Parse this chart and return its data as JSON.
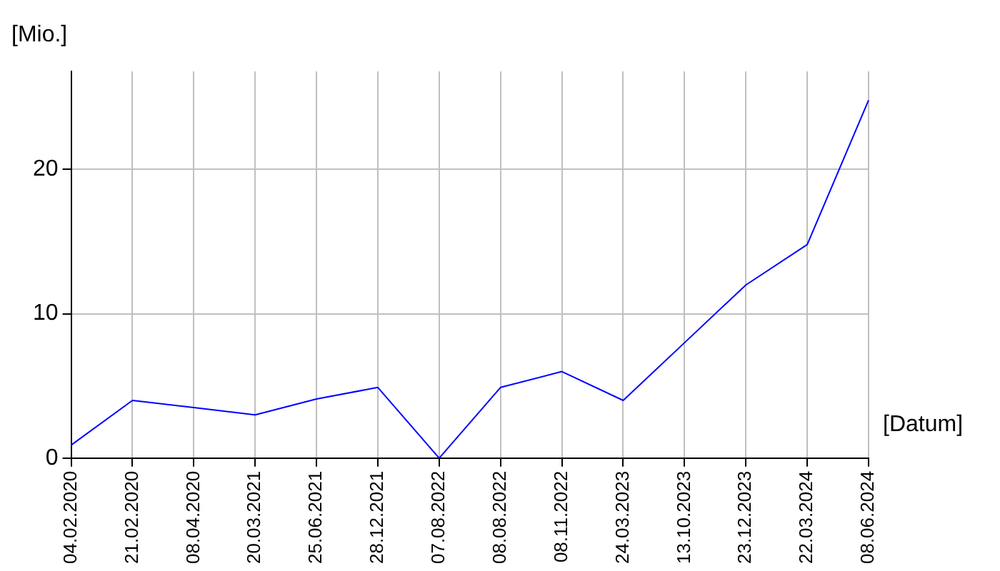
{
  "chart_data": {
    "type": "line",
    "ylabel": "[Mio.]",
    "xlabel": "[Datum]",
    "categories": [
      "04.02.2020",
      "21.02.2020",
      "08.04.2020",
      "20.03.2021",
      "25.06.2021",
      "28.12.2021",
      "07.08.2022",
      "08.08.2022",
      "08.11.2022",
      "24.03.2023",
      "13.10.2023",
      "23.12.2023",
      "22.03.2024",
      "08.06.2024"
    ],
    "series": [
      {
        "color": "#0000ff",
        "values": [
          0.9,
          4.0,
          3.5,
          3.0,
          4.1,
          4.9,
          0,
          4.9,
          6.0,
          4.0,
          8.0,
          12.0,
          14.8,
          24.8
        ]
      }
    ],
    "ylim": [
      0,
      26.8
    ],
    "yticks": [
      0,
      10,
      20
    ],
    "grid": true,
    "legend": false,
    "marker": "none",
    "line_style": "solid"
  }
}
